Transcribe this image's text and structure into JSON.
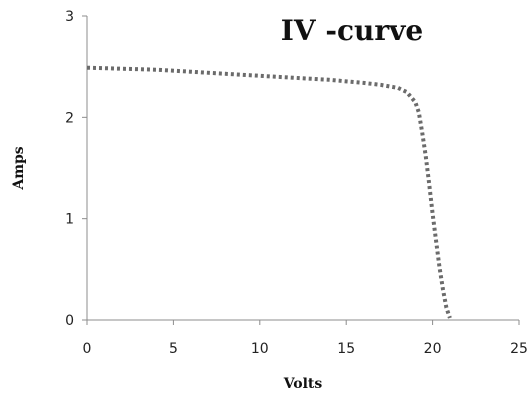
{
  "chart_data": {
    "type": "line",
    "title": "IV -curve",
    "xlabel": "Volts",
    "ylabel": "Amps",
    "xlim": [
      0,
      25
    ],
    "ylim": [
      0,
      3
    ],
    "x_ticks": [
      "0",
      "5",
      "10",
      "15",
      "20",
      "25"
    ],
    "y_ticks": [
      "0",
      "1",
      "2",
      "3"
    ],
    "grid": false,
    "legend": false,
    "line_style": "dotted",
    "line_color": "#6b6b6b",
    "series": [
      {
        "x": [
          0,
          2,
          4,
          6,
          8,
          10,
          12,
          14,
          16,
          17,
          18,
          18.5,
          19,
          19.2,
          19.4,
          19.6,
          19.8,
          20,
          20.2,
          20.4,
          20.6,
          20.8,
          21
        ],
        "y": [
          2.49,
          2.48,
          2.47,
          2.45,
          2.43,
          2.41,
          2.39,
          2.37,
          2.34,
          2.32,
          2.29,
          2.25,
          2.15,
          2.05,
          1.85,
          1.62,
          1.35,
          1.05,
          0.78,
          0.52,
          0.3,
          0.12,
          0.02
        ]
      }
    ]
  }
}
